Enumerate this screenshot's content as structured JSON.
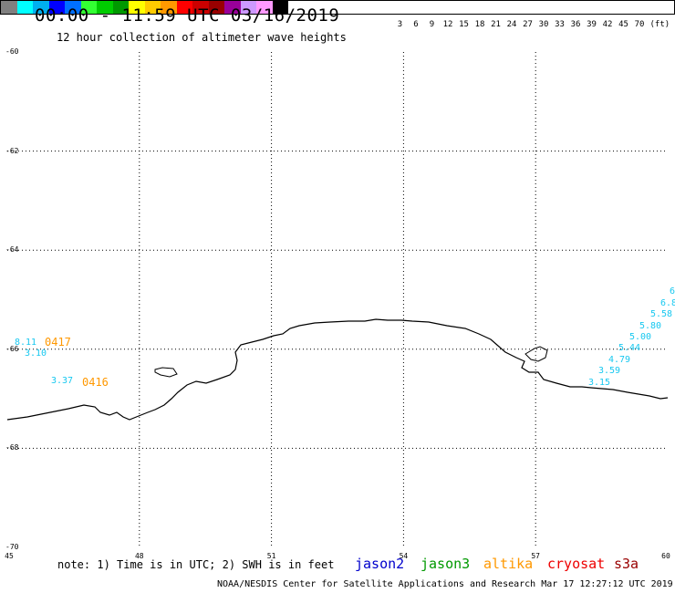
{
  "title": "00:00 - 11:59 UTC 03/16/2019",
  "subtitle": "12 hour collection of altimeter wave heights",
  "legend": {
    "colors": [
      "#808080",
      "#00ffff",
      "#00b0f0",
      "#0000ff",
      "#0070ff",
      "#33ff33",
      "#00cc00",
      "#009900",
      "#ffff00",
      "#ffcc00",
      "#ff9900",
      "#ff0000",
      "#cc0000",
      "#990000",
      "#990099",
      "#cc99ff",
      "#ff99ff",
      "#000000"
    ],
    "labels": [
      "3",
      "6",
      "9",
      "12",
      "15",
      "18",
      "21",
      "24",
      "27",
      "30",
      "33",
      "36",
      "39",
      "42",
      "45",
      "70",
      "(ft)"
    ]
  },
  "axes": {
    "y_ticks": [
      "-60",
      "-62",
      "-64",
      "-66",
      "-68",
      "-70"
    ],
    "x_ticks": [
      "45",
      "48",
      "51",
      "54",
      "57",
      "60"
    ]
  },
  "passes": [
    {
      "label": "0417"
    },
    {
      "label": "0416"
    }
  ],
  "swh_values": [
    "8.11",
    "3.10",
    "3.37",
    "6",
    "6.8",
    "5.58",
    "5.80",
    "5.00",
    "5.44",
    "4.79",
    "3.59",
    "3.15"
  ],
  "note": "note: 1) Time is in UTC; 2) SWH is in feet",
  "satellites": [
    {
      "name": "jason2",
      "color": "#0000cc"
    },
    {
      "name": "jason3",
      "color": "#009900"
    },
    {
      "name": "altika",
      "color": "#ff9800"
    },
    {
      "name": "cryosat",
      "color": "#ee0000"
    },
    {
      "name": "s3a",
      "color": "#990000"
    }
  ],
  "credit": "NOAA/NESDIS Center for Satellite Applications and Research    Mar 17 12:27:12 UTC 2019"
}
